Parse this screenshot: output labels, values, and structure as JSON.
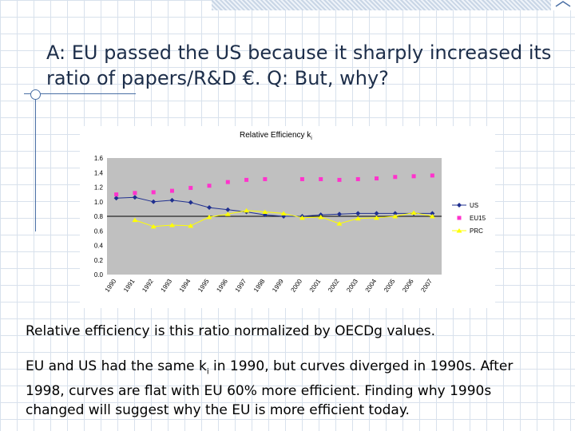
{
  "slide": {
    "title": "A: EU passed the US because it sharply increased its ratio of papers/R&D €. Q: But, why?",
    "text1": "Relative efficiency is this ratio normalized by OECDg values.",
    "text2_pre": "EU and US had the same k",
    "text2_sub": "i",
    "text2_post": " in 1990, but curves diverged in 1990s. After 1998, curves are flat with EU 60% more efficient.  Finding why 1990s changed will suggest why the EU is more efficient today."
  },
  "colors": {
    "plot_bg": "#c0c0c0",
    "US": "#1f2f8f",
    "EU15": "#ff33cc",
    "PRC": "#ffff00"
  },
  "chart_data": {
    "type": "line",
    "title_main": "Relative Efficiency k",
    "title_sub": "i",
    "x": [
      "1990",
      "1991",
      "1992",
      "1993",
      "1994",
      "1995",
      "1996",
      "1997",
      "1998",
      "1999",
      "2000",
      "2001",
      "2002",
      "2003",
      "2004",
      "2005",
      "2006",
      "2007"
    ],
    "ylim": [
      0,
      1.6
    ],
    "yticks": [
      "0.0",
      "0.2",
      "0.4",
      "0.6",
      "0.8",
      "1.0",
      "1.2",
      "1.4",
      "1.6"
    ],
    "reference_line": 0.8,
    "series": [
      {
        "name": "US",
        "marker": "diamond",
        "values": [
          1.05,
          1.06,
          1.0,
          1.02,
          0.99,
          0.92,
          0.89,
          0.86,
          0.82,
          0.8,
          0.8,
          0.82,
          0.83,
          0.84,
          0.84,
          0.84,
          0.84,
          0.84
        ]
      },
      {
        "name": "EU15",
        "marker": "square",
        "values": [
          1.1,
          1.12,
          1.13,
          1.15,
          1.19,
          1.22,
          1.27,
          1.3,
          1.31,
          null,
          1.31,
          1.31,
          1.3,
          1.31,
          1.32,
          1.34,
          1.35,
          1.36
        ]
      },
      {
        "name": "PRC",
        "marker": "triangle",
        "values": [
          null,
          0.75,
          0.66,
          0.68,
          0.67,
          0.79,
          0.83,
          0.88,
          0.86,
          0.84,
          0.78,
          0.79,
          0.7,
          0.77,
          0.78,
          0.8,
          0.85,
          0.8
        ]
      }
    ],
    "legend_position": "right"
  }
}
